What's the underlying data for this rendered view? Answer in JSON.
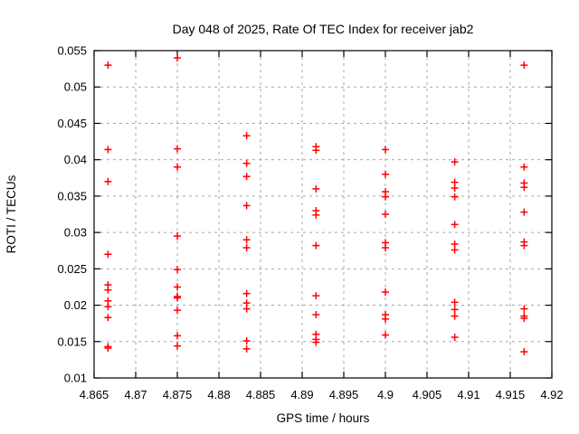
{
  "window": {
    "background_color": "#ffffff",
    "text_color": "#000000"
  },
  "chart_data": {
    "type": "scatter",
    "title": "Day 048 of 2025, Rate Of TEC Index for receiver jab2",
    "xlabel": "GPS time / hours",
    "ylabel": "ROTI / TECUs",
    "xlim": [
      4.865,
      4.92
    ],
    "ylim": [
      0.01,
      0.055
    ],
    "x_tick_values": [
      4.865,
      4.87,
      4.875,
      4.88,
      4.885,
      4.89,
      4.895,
      4.9,
      4.905,
      4.91,
      4.915,
      4.92
    ],
    "x_tick_labels": [
      "4.865",
      "4.87",
      "4.875",
      "4.88",
      "4.885",
      "4.89",
      "4.895",
      "4.9",
      "4.905",
      "4.91",
      "4.915",
      "4.92"
    ],
    "y_tick_values": [
      0.01,
      0.015,
      0.02,
      0.025,
      0.03,
      0.035,
      0.04,
      0.045,
      0.05,
      0.055
    ],
    "y_tick_labels": [
      "0.01",
      "0.015",
      "0.02",
      "0.025",
      "0.03",
      "0.035",
      "0.04",
      "0.045",
      "0.05",
      "0.055"
    ],
    "grid": "dashed-gray-at-interior-ticks",
    "legend": "none",
    "marker": "plus",
    "marker_color": "#ff0000",
    "grid_color": "#a8a8a8",
    "border_color": "#000000",
    "epochs": [
      {
        "x": 4.86667,
        "roti": [
          0.053,
          0.0414,
          0.037,
          0.027,
          0.0228,
          0.0221,
          0.0206,
          0.0198,
          0.0183,
          0.0143,
          0.0141
        ]
      },
      {
        "x": 4.875,
        "roti": [
          0.054,
          0.0415,
          0.039,
          0.0295,
          0.0249,
          0.0225,
          0.0212,
          0.021,
          0.0193,
          0.0158,
          0.0144
        ]
      },
      {
        "x": 4.88333,
        "roti": [
          0.0433,
          0.0395,
          0.0377,
          0.0337,
          0.029,
          0.0279,
          0.0216,
          0.0203,
          0.0195,
          0.0151,
          0.014
        ]
      },
      {
        "x": 4.89167,
        "roti": [
          0.0418,
          0.0413,
          0.036,
          0.033,
          0.0324,
          0.0282,
          0.0213,
          0.0187,
          0.016,
          0.0153,
          0.0149
        ]
      },
      {
        "x": 4.9,
        "roti": [
          0.0414,
          0.038,
          0.0356,
          0.0349,
          0.0325,
          0.0286,
          0.0279,
          0.0218,
          0.0187,
          0.0181,
          0.0159
        ]
      },
      {
        "x": 4.90833,
        "roti": [
          0.0397,
          0.0369,
          0.0361,
          0.0349,
          0.0311,
          0.0284,
          0.0276,
          0.0204,
          0.0194,
          0.0185,
          0.0156
        ]
      },
      {
        "x": 4.91667,
        "roti": [
          0.053,
          0.039,
          0.0368,
          0.0362,
          0.0328,
          0.0287,
          0.0282,
          0.0195,
          0.0185,
          0.0182,
          0.0136
        ]
      }
    ]
  }
}
